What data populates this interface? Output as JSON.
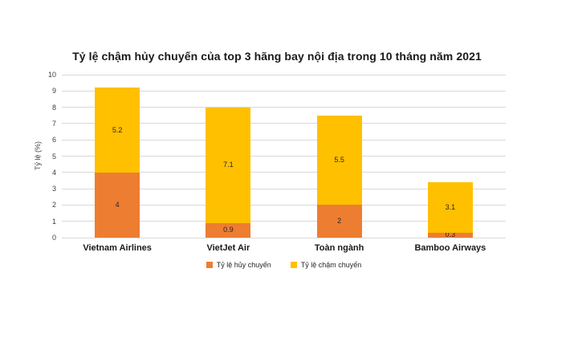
{
  "chart_data": {
    "type": "bar",
    "stacked": true,
    "title": "Tỷ lệ chậm hủy chuyến của top 3 hãng bay nội địa trong 10 tháng năm 2021",
    "xlabel": "",
    "ylabel": "Tỷ lệ (%)",
    "ylim": [
      0,
      10
    ],
    "ytick_step": 1,
    "grid": true,
    "legend_position": "bottom",
    "categories": [
      "Vietnam Airlines",
      "VietJet Air",
      "Toàn ngành",
      "Bamboo Airways"
    ],
    "series": [
      {
        "name": "Tỷ lệ hủy chuyến",
        "color": "#ED7D31",
        "values": [
          4,
          0.9,
          2,
          0.3
        ]
      },
      {
        "name": "Tỷ lệ chậm chuyến",
        "color": "#FFC000",
        "values": [
          5.2,
          7.1,
          5.5,
          3.1
        ]
      }
    ]
  },
  "colors": {
    "gridline": "#d9d9d9",
    "tick_text": "#404040",
    "title_text": "#1a1a1a",
    "value_label_text": "#262626",
    "background": "#ffffff"
  }
}
